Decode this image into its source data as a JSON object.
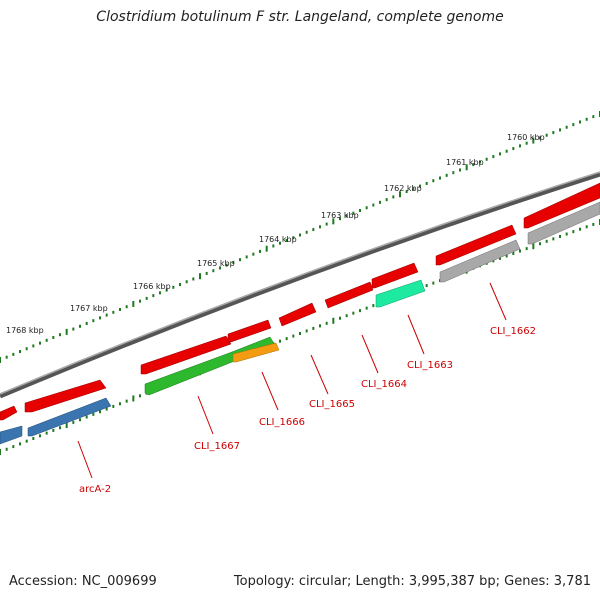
{
  "header": {
    "title": "Clostridium botulinum F str. Langeland, complete genome"
  },
  "footer": {
    "accession": "Accession: NC_009699",
    "topology": "Topology: circular; Length: 3,995,387 bp; Genes: 3,781"
  },
  "map": {
    "backbone_color": "#808080",
    "tick_color": "#1f7a1f",
    "kbp_labels": [
      "1768 kbp",
      "1767 kbp",
      "1766 kbp",
      "1765 kbp",
      "1764 kbp",
      "1763 kbp",
      "1762 kbp",
      "1761 kbp",
      "1760 kbp"
    ],
    "gene_labels": [
      "arcA-2",
      "CLI_1667",
      "CLI_1666",
      "CLI_1665",
      "CLI_1664",
      "CLI_1663",
      "CLI_1662"
    ],
    "gene_colors": {
      "red": "#e60000",
      "blue": "#3a75b0",
      "green": "#2eb82e",
      "orange": "#f39c12",
      "teal": "#1de9a0",
      "gray": "#a8a8a8"
    }
  }
}
